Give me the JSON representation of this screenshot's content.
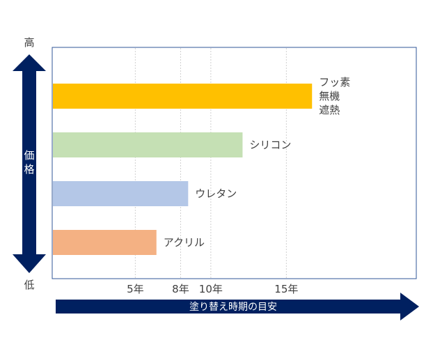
{
  "chart_data": {
    "type": "bar",
    "orientation": "horizontal",
    "categories": [
      "フッ素\n無機\n遮熱",
      "シリコン",
      "ウレタン",
      "アクリル"
    ],
    "values": [
      16.7,
      12.1,
      8.5,
      6.4
    ],
    "bar_colors": [
      "#ffc000",
      "#c5e0b4",
      "#b4c7e7",
      "#f4b183"
    ],
    "x_ticks": [
      5,
      8,
      10,
      15
    ],
    "x_tick_labels": [
      "5年",
      "8年",
      "10年",
      "15年"
    ],
    "grid": true,
    "xlabel": "塗り替え時期の目安",
    "y_axis": {
      "label": "価格",
      "high_label": "高",
      "low_label": "低"
    }
  },
  "colors": {
    "arrow": "#002060",
    "plot_border": "#2f5597",
    "grid": "#d0d0d0",
    "text": "#404040"
  }
}
